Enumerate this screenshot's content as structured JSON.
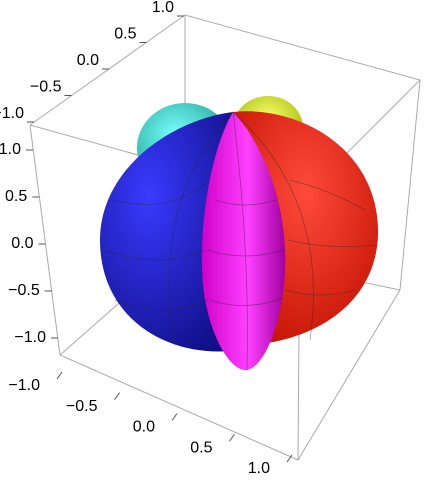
{
  "chart_data": {
    "type": "surface3d",
    "xlim": [
      -1,
      1
    ],
    "xticks": [
      {
        "value": -1,
        "label": "−1.0"
      },
      {
        "value": -0.5,
        "label": "−0.5"
      },
      {
        "value": 0,
        "label": "0.0"
      },
      0.5,
      {
        "value": 1,
        "label": "1.0"
      }
    ],
    "ylim": [
      -1,
      1
    ],
    "yticks": [
      {
        "value": -1,
        "label": "−1.0"
      },
      {
        "value": -0.5,
        "label": "−0.5"
      },
      {
        "value": 0,
        "label": "0.0"
      },
      0.5,
      {
        "value": 1,
        "label": "1.0"
      }
    ],
    "zlim": [
      -1,
      1
    ],
    "zticks": [
      {
        "value": -1,
        "label": "−1.0"
      },
      {
        "value": -0.5,
        "label": "−0.5"
      },
      {
        "value": 0,
        "label": "0.0"
      },
      0.5,
      {
        "value": 1,
        "label": "1.0"
      }
    ]
  }
}
